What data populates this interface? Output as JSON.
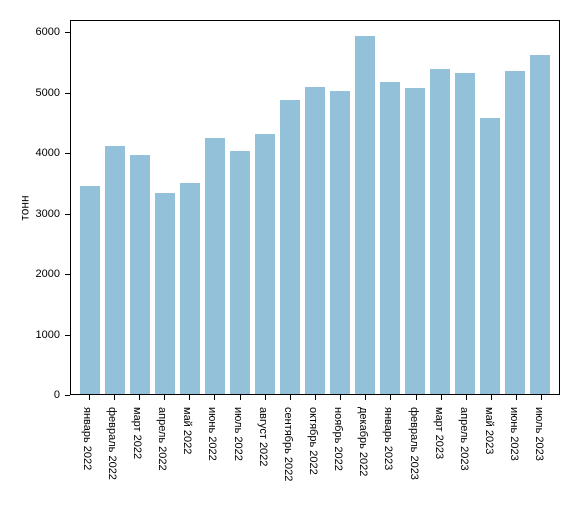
{
  "chart": {
    "type": "bar",
    "ylabel": "тонн",
    "label_fontsize": 12,
    "tick_fontsize": 11,
    "ylim": [
      0,
      6200
    ],
    "yticks": [
      0,
      1000,
      2000,
      3000,
      4000,
      5000,
      6000
    ],
    "bar_color": "#93c1da",
    "background_color": "#ffffff",
    "border_color": "#000000",
    "bar_width": 0.8,
    "categories": [
      "январь 2022",
      "февраль 2022",
      "март 2022",
      "апрель 2022",
      "май 2022",
      "июнь 2022",
      "июль 2022",
      "август 2022",
      "сентябрь 2022",
      "октябрь 2022",
      "ноябрь 2022",
      "декабрь 2022",
      "январь 2023",
      "февраль 2023",
      "март 2023",
      "апрель 2023",
      "май 2023",
      "июнь 2023",
      "июль 2023"
    ],
    "values": [
      3460,
      4120,
      3980,
      3340,
      3500,
      4250,
      4040,
      4330,
      4890,
      5110,
      5040,
      5950,
      5180,
      5080,
      5400,
      5340,
      4590,
      5370,
      5640
    ]
  }
}
